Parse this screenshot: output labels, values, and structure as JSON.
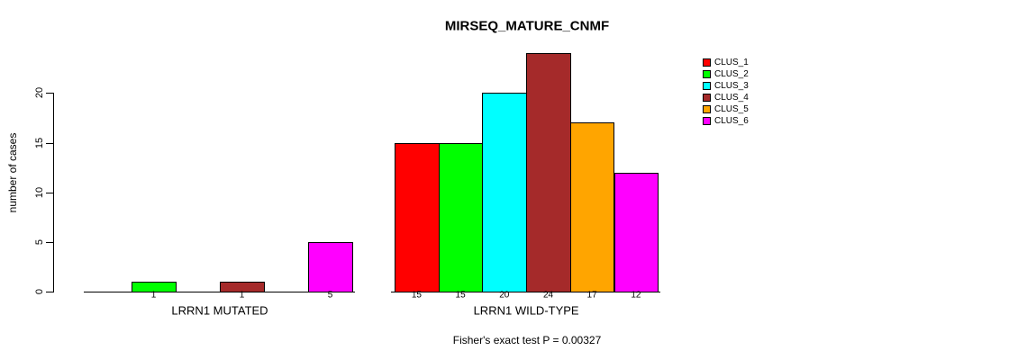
{
  "title": "MIRSEQ_MATURE_CNMF",
  "chart_data": {
    "type": "bar",
    "title": "MIRSEQ_MATURE_CNMF",
    "xlabel": "",
    "ylabel": "number of cases",
    "ylim": [
      0,
      20
    ],
    "yticks": [
      "0",
      "5",
      "10",
      "15",
      "20"
    ],
    "grid": false,
    "legend_position": "right",
    "clusters": [
      {
        "name": "CLUS_1",
        "color": "#FF0000"
      },
      {
        "name": "CLUS_2",
        "color": "#00FF00"
      },
      {
        "name": "CLUS_3",
        "color": "#00FFFF"
      },
      {
        "name": "CLUS_4",
        "color": "#A52A2A"
      },
      {
        "name": "CLUS_5",
        "color": "#FFA500"
      },
      {
        "name": "CLUS_6",
        "color": "#FF00FF"
      }
    ],
    "groups": [
      {
        "label": "LRRN1 MUTATED",
        "bars": [
          {
            "cluster": "CLUS_2",
            "value": 1
          },
          {
            "cluster": "CLUS_4",
            "value": 1
          },
          {
            "cluster": "CLUS_6",
            "value": 5
          }
        ]
      },
      {
        "label": "LRRN1 WILD-TYPE",
        "bars": [
          {
            "cluster": "CLUS_1",
            "value": 15
          },
          {
            "cluster": "CLUS_2",
            "value": 15
          },
          {
            "cluster": "CLUS_3",
            "value": 20
          },
          {
            "cluster": "CLUS_4",
            "value": 24
          },
          {
            "cluster": "CLUS_5",
            "value": 17
          },
          {
            "cluster": "CLUS_6",
            "value": 12
          }
        ]
      }
    ],
    "annotation": "Fisher's exact test P = 0.00327"
  }
}
